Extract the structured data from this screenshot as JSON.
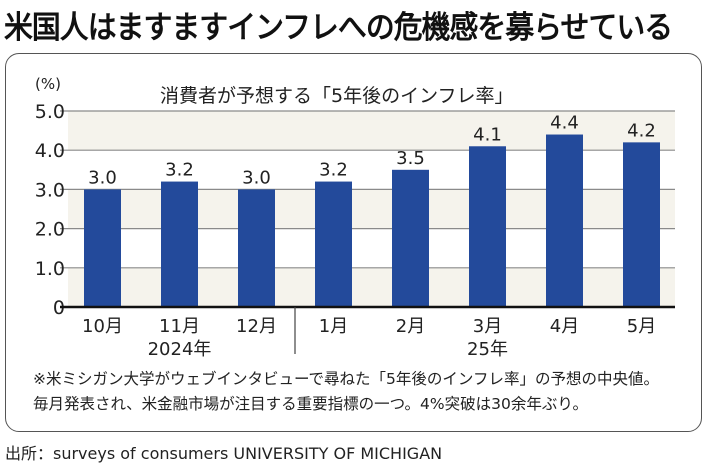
{
  "headline": "米国人はますますインフレへの危機感を募らせている",
  "chart_data": {
    "type": "bar",
    "title": "消費者が予想する「5年後のインフレ率」",
    "unit_label": "(%)",
    "xlabel": "",
    "ylabel": "(%)",
    "ylim": [
      0,
      5.0
    ],
    "yticks": [
      0,
      1.0,
      2.0,
      3.0,
      4.0,
      5.0
    ],
    "ytick_labels": [
      "0",
      "1.0",
      "2.0",
      "3.0",
      "4.0",
      "5.0"
    ],
    "grid": true,
    "categories": [
      "10月",
      "11月",
      "12月",
      "1月",
      "2月",
      "3月",
      "4月",
      "5月"
    ],
    "values": [
      3.0,
      3.2,
      3.0,
      3.2,
      3.5,
      4.1,
      4.4,
      4.2
    ],
    "value_labels": [
      "3.0",
      "3.2",
      "3.0",
      "3.2",
      "3.5",
      "4.1",
      "4.4",
      "4.2"
    ],
    "year_groups": [
      {
        "label": "2024年",
        "categories": [
          "10月",
          "11月",
          "12月"
        ]
      },
      {
        "label": "25年",
        "categories": [
          "1月",
          "2月",
          "3月",
          "4月",
          "5月"
        ]
      }
    ],
    "colors": {
      "bar": "#234a9b",
      "band": "#f5f3ec",
      "grid": "#8a8a8a",
      "axis": "#111111"
    }
  },
  "notes": [
    "※米ミシガン大学がウェブインタビューで尋ねた「5年後のインフレ率」の予想の中央値。",
    "毎月発表され、米金融市場が注目する重要指標の一つ。4%突破は30余年ぶり。"
  ],
  "source": "出所：surveys of consumers UNIVERSITY OF MICHIGAN"
}
